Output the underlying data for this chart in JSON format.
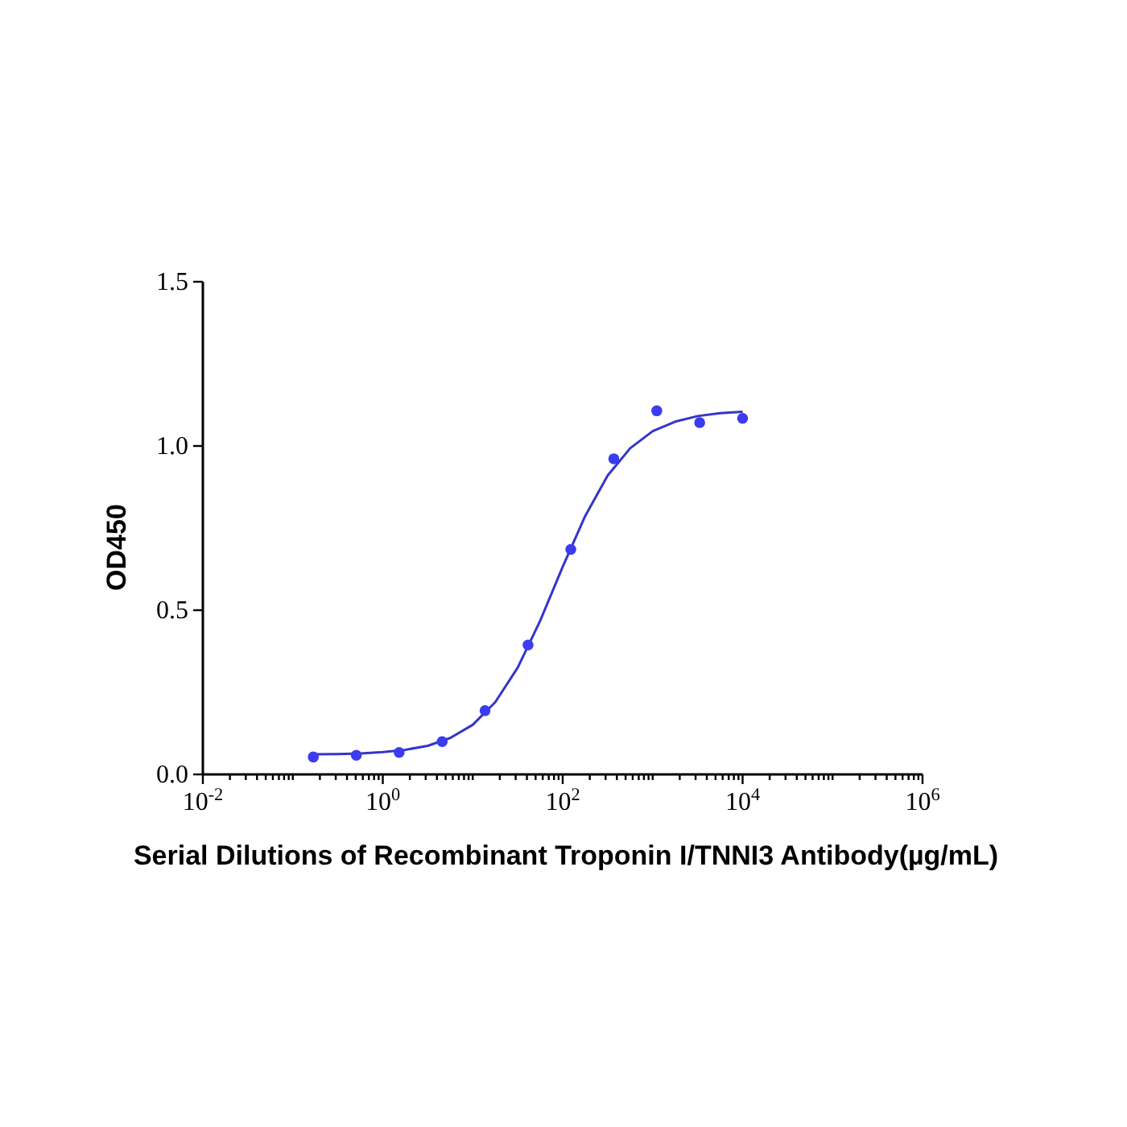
{
  "chart_data": {
    "type": "scatter",
    "xlabel": "Serial Dilutions of Recombinant Troponin I/TNNI3 Antibody(µg/mL)",
    "ylabel": "OD450",
    "log": "x",
    "grid": false,
    "xlim": [
      0.01,
      1000000
    ],
    "ylim": [
      0,
      1.5
    ],
    "xticks": [
      {
        "value": 0.01,
        "label": "10$^{-2}$"
      },
      {
        "value": 0.02,
        "label": null
      },
      {
        "value": 0.03,
        "label": null
      },
      {
        "value": 0.04,
        "label": null
      },
      {
        "value": 0.05,
        "label": null
      },
      {
        "value": 0.06,
        "label": null
      },
      {
        "value": 0.07,
        "label": null
      },
      {
        "value": 0.08,
        "label": null
      },
      {
        "value": 0.09,
        "label": null
      },
      {
        "value": 0.1,
        "label": null
      },
      {
        "value": 0.2,
        "label": null
      },
      {
        "value": 0.3,
        "label": null
      },
      {
        "value": 0.4,
        "label": null
      },
      {
        "value": 0.5,
        "label": null
      },
      {
        "value": 0.6,
        "label": null
      },
      {
        "value": 0.7,
        "label": null
      },
      {
        "value": 0.8,
        "label": null
      },
      {
        "value": 0.9,
        "label": null
      },
      {
        "value": 1,
        "label": "10$^{0}$"
      },
      {
        "value": 2,
        "label": null
      },
      {
        "value": 3,
        "label": null
      },
      {
        "value": 4,
        "label": null
      },
      {
        "value": 5,
        "label": null
      },
      {
        "value": 6,
        "label": null
      },
      {
        "value": 7,
        "label": null
      },
      {
        "value": 8,
        "label": null
      },
      {
        "value": 9,
        "label": null
      },
      {
        "value": 10,
        "label": null
      },
      {
        "value": 20,
        "label": null
      },
      {
        "value": 30,
        "label": null
      },
      {
        "value": 40,
        "label": null
      },
      {
        "value": 50,
        "label": null
      },
      {
        "value": 60,
        "label": null
      },
      {
        "value": 70,
        "label": null
      },
      {
        "value": 80,
        "label": null
      },
      {
        "value": 90,
        "label": null
      },
      {
        "value": 100,
        "label": "10$^{2}$"
      },
      {
        "value": 200,
        "label": null
      },
      {
        "value": 300,
        "label": null
      },
      {
        "value": 400,
        "label": null
      },
      {
        "value": 500,
        "label": null
      },
      {
        "value": 600,
        "label": null
      },
      {
        "value": 700,
        "label": null
      },
      {
        "value": 800,
        "label": null
      },
      {
        "value": 900,
        "label": null
      },
      {
        "value": 1000,
        "label": null
      },
      {
        "value": 2000,
        "label": null
      },
      {
        "value": 3000,
        "label": null
      },
      {
        "value": 4000,
        "label": null
      },
      {
        "value": 5000,
        "label": null
      },
      {
        "value": 6000,
        "label": null
      },
      {
        "value": 7000,
        "label": null
      },
      {
        "value": 8000,
        "label": null
      },
      {
        "value": 9000,
        "label": null
      },
      {
        "value": 10000,
        "label": "10$^{4}$"
      },
      {
        "value": 20000,
        "label": null
      },
      {
        "value": 30000,
        "label": null
      },
      {
        "value": 40000,
        "label": null
      },
      {
        "value": 50000,
        "label": null
      },
      {
        "value": 60000,
        "label": null
      },
      {
        "value": 70000,
        "label": null
      },
      {
        "value": 80000,
        "label": null
      },
      {
        "value": 90000,
        "label": null
      },
      {
        "value": 100000,
        "label": null
      },
      {
        "value": 200000,
        "label": null
      },
      {
        "value": 300000,
        "label": null
      },
      {
        "value": 400000,
        "label": null
      },
      {
        "value": 500000,
        "label": null
      },
      {
        "value": 600000,
        "label": null
      },
      {
        "value": 700000,
        "label": null
      },
      {
        "value": 800000,
        "label": null
      },
      {
        "value": 900000,
        "label": null
      },
      {
        "value": 1000000,
        "label": "10$^{6}$"
      }
    ],
    "yticks": [
      {
        "value": 0,
        "label": "0.0"
      },
      {
        "value": 0.5,
        "label": "0.5"
      },
      {
        "value": 1,
        "label": "1.0"
      },
      {
        "value": 1.5,
        "label": "1.5"
      }
    ],
    "series": [
      {
        "marker": "circle",
        "color": "#3b3bf0",
        "x": [
          0.169,
          0.508,
          1.52,
          4.57,
          13.7,
          41.2,
          123,
          370,
          1111,
          3333,
          10000
        ],
        "values": [
          0.053,
          0.058,
          0.067,
          0.1,
          0.194,
          0.394,
          0.685,
          0.961,
          1.107,
          1.071,
          1.084
        ]
      },
      {
        "type": "line",
        "marker": "none",
        "line_style": "solid",
        "color": "#3535c8",
        "x": [
          0.169,
          0.316,
          0.562,
          1,
          1.78,
          3.16,
          5.62,
          10,
          17.8,
          31.6,
          56.2,
          100,
          178,
          316,
          562,
          1000,
          1778,
          3162,
          5623,
          10000
        ],
        "values": [
          0.061,
          0.062,
          0.064,
          0.068,
          0.075,
          0.087,
          0.111,
          0.151,
          0.22,
          0.325,
          0.468,
          0.632,
          0.787,
          0.91,
          0.993,
          1.045,
          1.074,
          1.091,
          1.1,
          1.104
        ]
      }
    ]
  }
}
